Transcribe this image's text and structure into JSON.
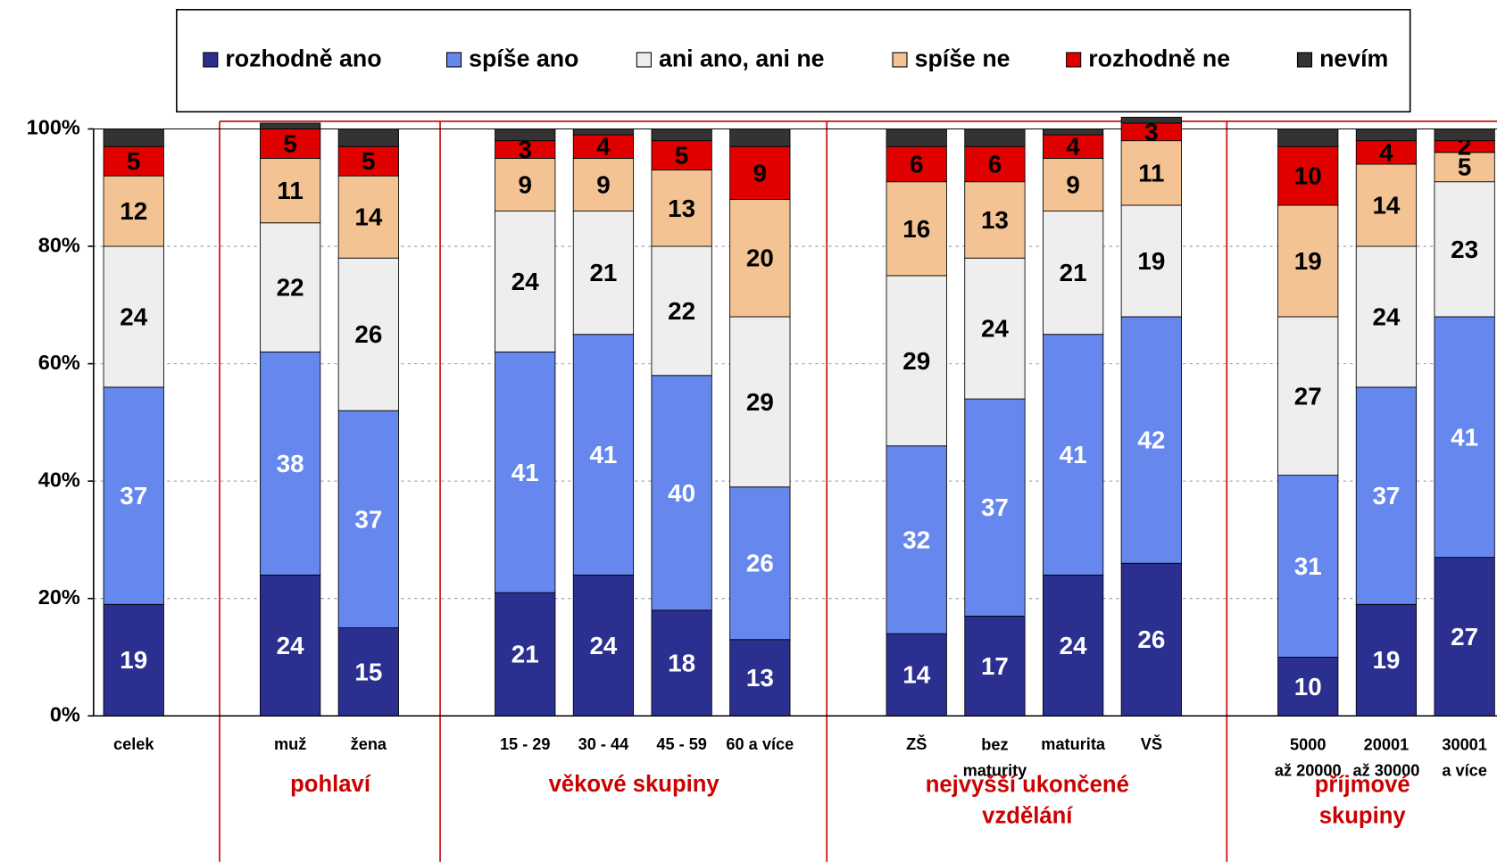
{
  "chart_data": {
    "type": "stacked_bar",
    "categories": [
      "celek",
      null,
      "muž",
      "žena",
      null,
      "15 - 29",
      "30 - 44",
      "45 - 59",
      "60 a více",
      null,
      "ZŠ",
      "bez\nmaturity",
      "maturita",
      "VŠ",
      null,
      "5000\naž 20000",
      "20001\naž 30000",
      "30001\na více"
    ],
    "groups": [
      "pohlaví",
      "věkové skupiny",
      "nejvyšší ukončené\nvzdělání",
      "příjmové\nskupiny"
    ],
    "series": [
      {
        "name": "rozhodně ano",
        "color": "#2b2f8f",
        "values": [
          19,
          null,
          24,
          15,
          null,
          21,
          24,
          18,
          13,
          null,
          14,
          17,
          24,
          26,
          null,
          10,
          19,
          27
        ]
      },
      {
        "name": "spíše ano",
        "color": "#6688ee",
        "values": [
          37,
          null,
          38,
          37,
          null,
          41,
          41,
          40,
          26,
          null,
          32,
          37,
          41,
          42,
          null,
          31,
          37,
          41
        ]
      },
      {
        "name": "ani ano, ani ne",
        "color": "#eeeeee",
        "values": [
          24,
          null,
          22,
          26,
          null,
          24,
          21,
          22,
          29,
          null,
          29,
          24,
          21,
          19,
          null,
          27,
          24,
          23
        ]
      },
      {
        "name": "spíše ne",
        "color": "#f3c393",
        "values": [
          12,
          null,
          11,
          14,
          null,
          9,
          9,
          13,
          20,
          null,
          16,
          13,
          9,
          11,
          null,
          19,
          14,
          5
        ]
      },
      {
        "name": "rozhodně ne",
        "color": "#e00000",
        "values": [
          5,
          null,
          5,
          5,
          null,
          3,
          4,
          5,
          9,
          null,
          6,
          6,
          4,
          3,
          null,
          10,
          4,
          2
        ]
      },
      {
        "name": "nevím",
        "color": "#333333",
        "values": [
          3,
          null,
          1,
          3,
          null,
          2,
          1,
          2,
          3,
          null,
          3,
          3,
          1,
          1,
          null,
          3,
          2,
          2
        ]
      }
    ],
    "ylim": [
      0,
      100
    ],
    "yticks": [
      {
        "value": 0,
        "label": "0%"
      },
      {
        "value": 20,
        "label": "20%"
      },
      {
        "value": 40,
        "label": "40%"
      },
      {
        "value": 60,
        "label": "60%"
      },
      {
        "value": 80,
        "label": "80%"
      },
      {
        "value": 100,
        "label": "100%"
      }
    ],
    "grid": true,
    "legend": "top"
  }
}
